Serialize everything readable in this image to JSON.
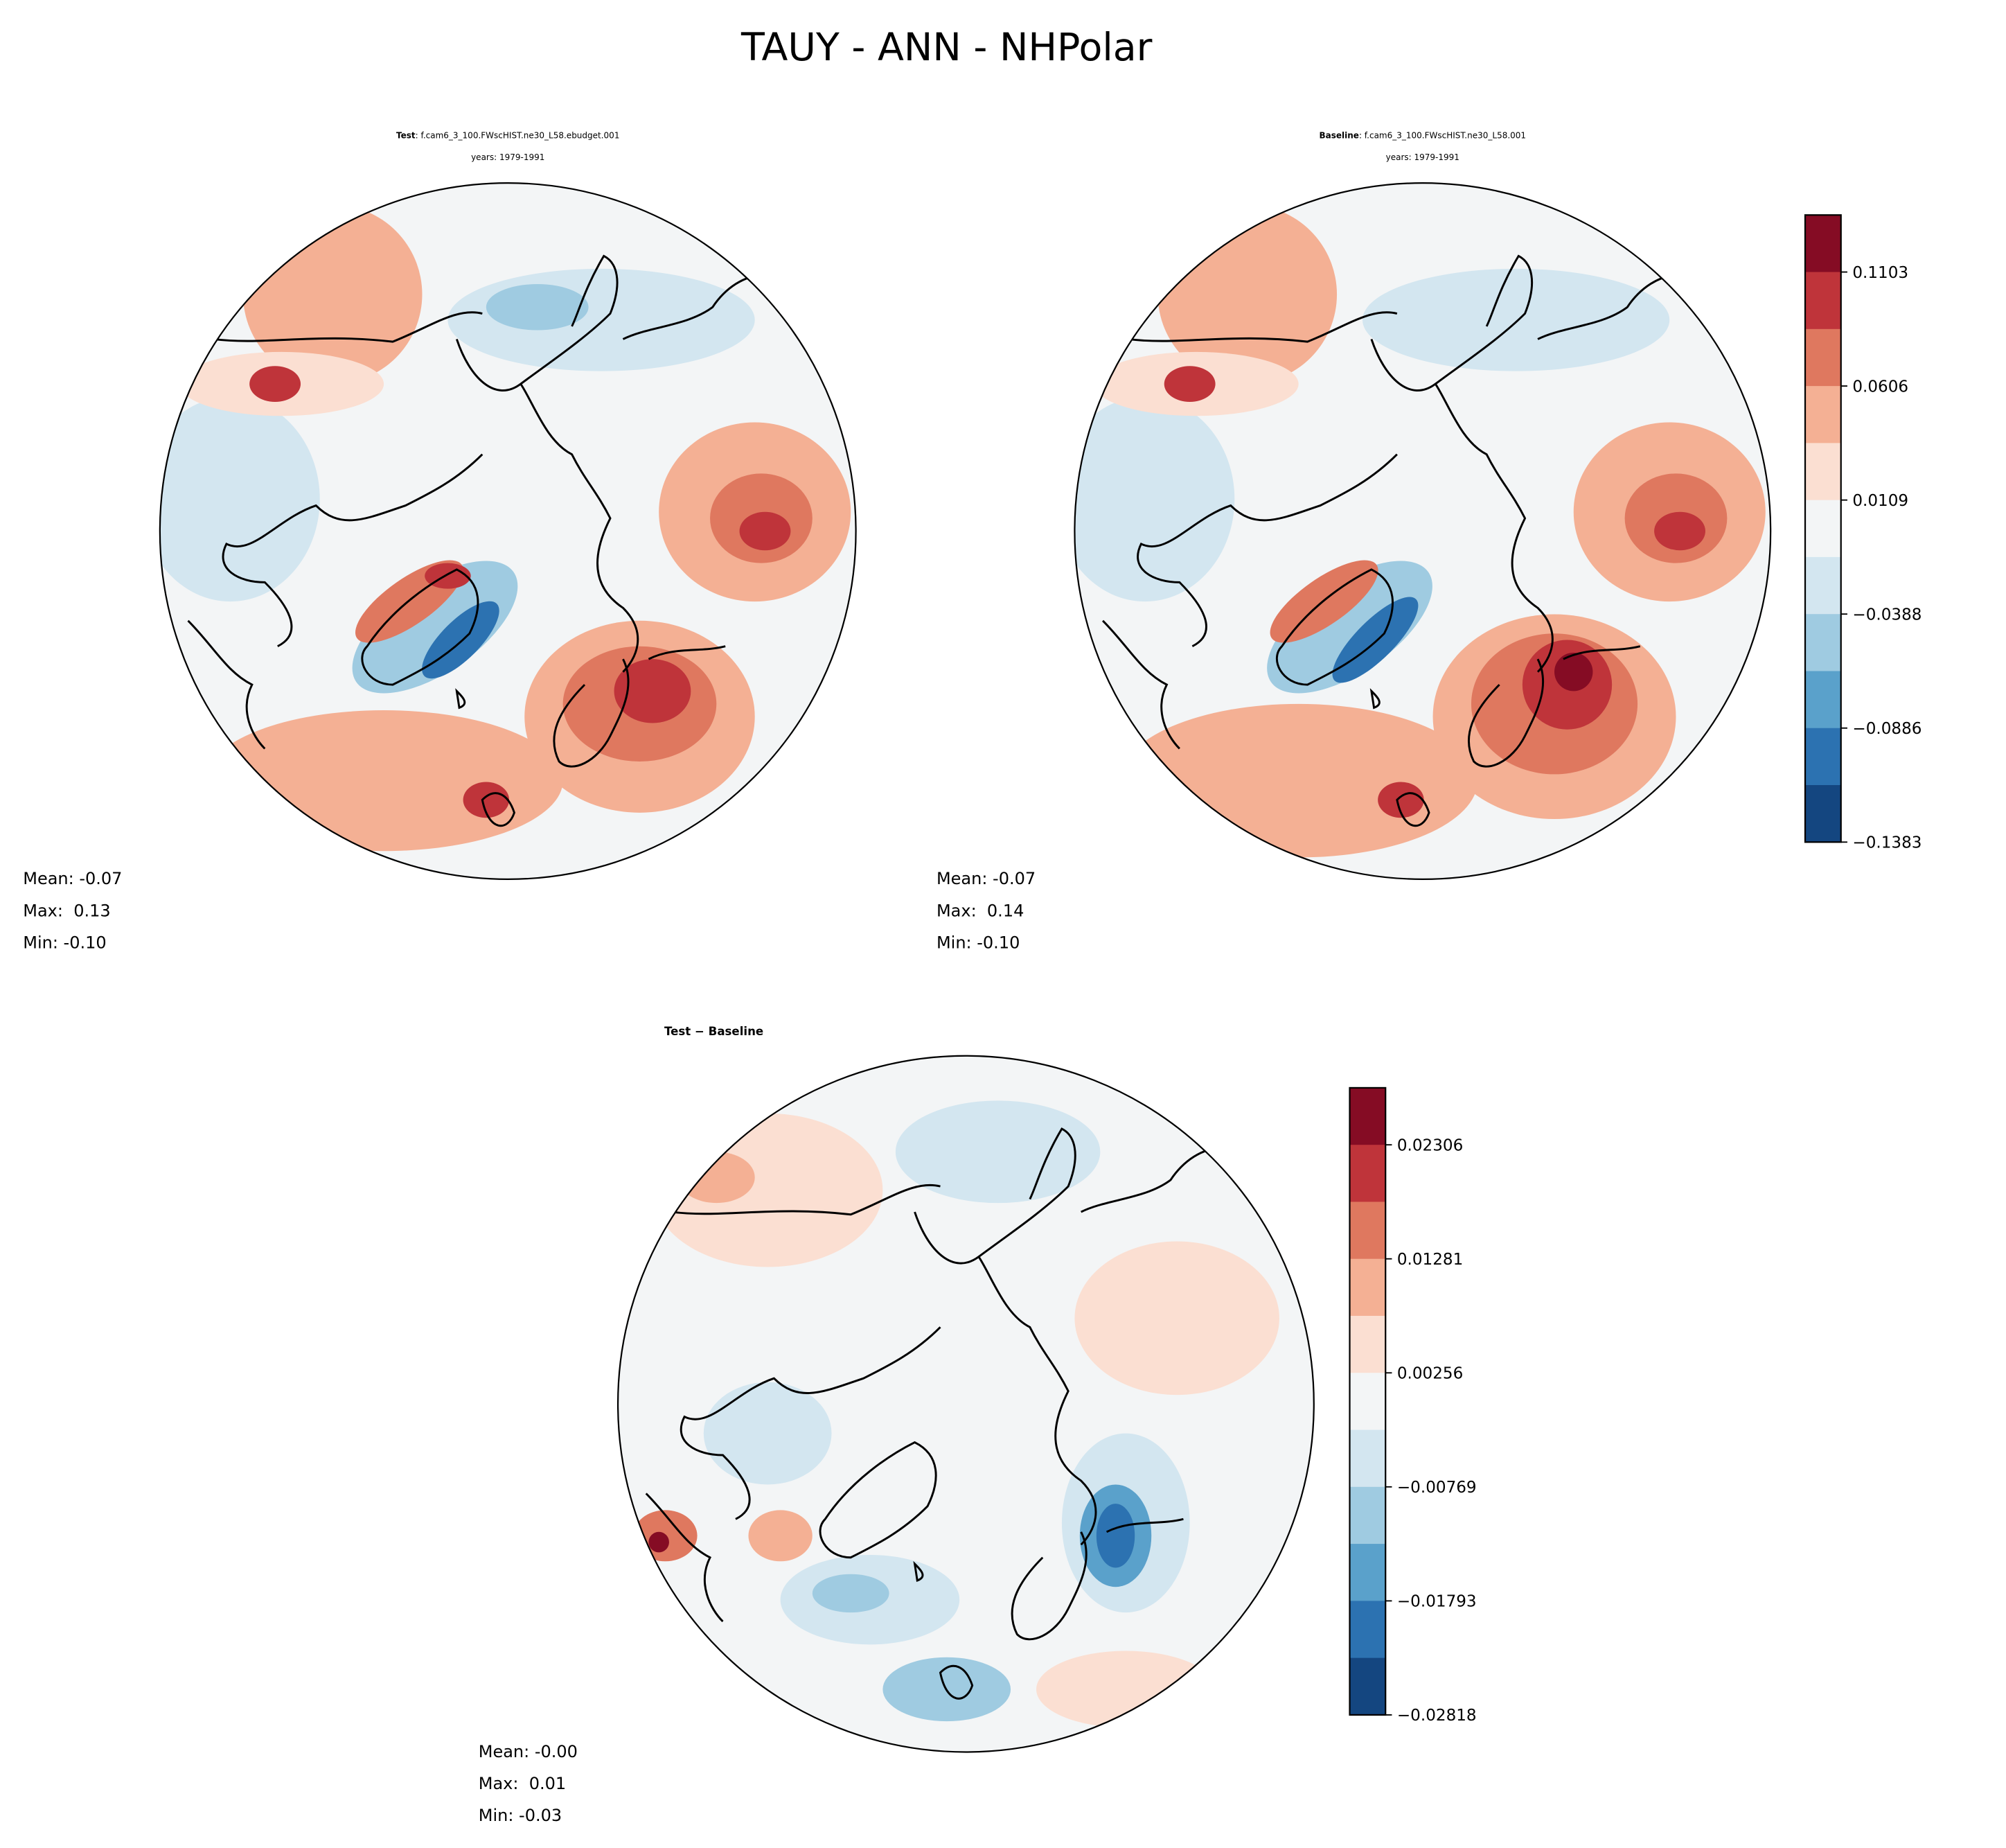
{
  "chart_data": [
    {
      "type": "heatmap",
      "panel": "test",
      "title_bold": "Test",
      "title_rest": ": f.cam6_3_100.FWscHIST.ne30_L58.ebudget.001",
      "years": "years: 1979-1991",
      "projection": "north polar stereographic",
      "stats": {
        "mean": "Mean: -0.07",
        "max": "Max:  0.13",
        "min": "Min: -0.10"
      },
      "colorbar_ref": "main"
    },
    {
      "type": "heatmap",
      "panel": "baseline",
      "title_bold": "Baseline",
      "title_rest": ": f.cam6_3_100.FWscHIST.ne30_L58.001",
      "years": "years: 1979-1991",
      "projection": "north polar stereographic",
      "stats": {
        "mean": "Mean: -0.07",
        "max": "Max:  0.14",
        "min": "Min: -0.10"
      },
      "colorbar_ref": "main"
    },
    {
      "type": "heatmap",
      "panel": "difference",
      "title_bold": "Test − Baseline",
      "projection": "north polar stereographic",
      "stats": {
        "mean": "Mean: -0.00",
        "max": "Max:  0.01",
        "min": "Min: -0.03"
      },
      "colorbar_ref": "diff"
    }
  ],
  "figure_title": "TAUY - ANN - NHPolar",
  "colorbars": {
    "main": {
      "ticks": [
        "0.1103",
        "0.0606",
        "0.0109",
        "−0.0388",
        "−0.0886",
        "−0.1383"
      ],
      "range": [
        -0.1383,
        0.1352
      ]
    },
    "diff": {
      "ticks": [
        "0.02306",
        "0.01281",
        "0.00256",
        "−0.00769",
        "−0.01793",
        "−0.02818"
      ],
      "range": [
        -0.02818,
        0.02818
      ]
    }
  },
  "colormap": [
    "#850c24",
    "#bf343a",
    "#df785f",
    "#f4b094",
    "#fbdfd2",
    "#f3f5f6",
    "#d3e6f0",
    "#9fcbe1",
    "#5aa1cb",
    "#2c72b1",
    "#144680"
  ]
}
